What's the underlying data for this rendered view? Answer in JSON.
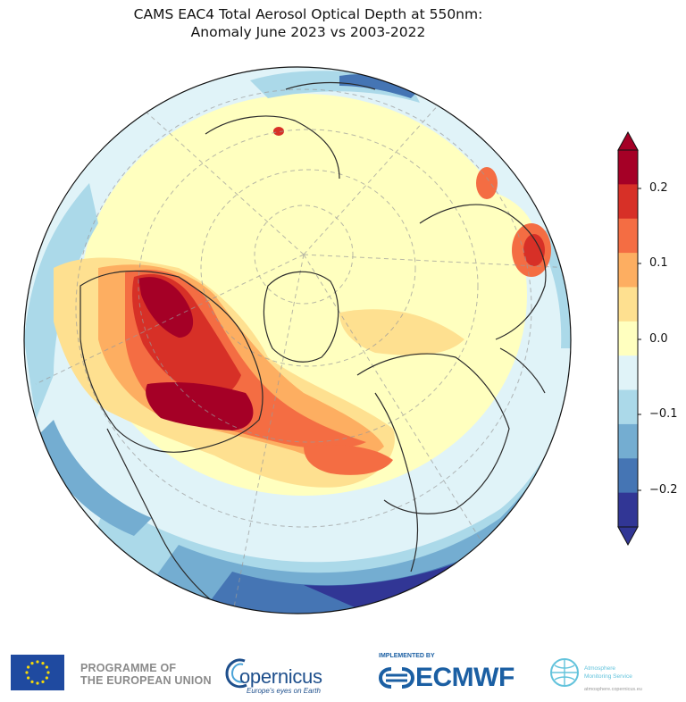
{
  "title": {
    "line1": "CAMS EAC4 Total Aerosol Optical Depth at 550nm:",
    "line2": "Anomaly June 2023 vs 2003-2022"
  },
  "map": {
    "projection": "north polar orthographic",
    "colormap": [
      "#313695",
      "#4575b4",
      "#74add1",
      "#abd9e9",
      "#e0f3f8",
      "#ffffbf",
      "#fee090",
      "#fdae61",
      "#f46d43",
      "#d73027",
      "#a50026"
    ]
  },
  "colorbar": {
    "ticks": [
      "0.2",
      "0.1",
      "0.0",
      "−0.1",
      "−0.2"
    ],
    "range": [
      -0.25,
      0.25
    ],
    "extend": "both"
  },
  "footer": {
    "eu_line1": "PROGRAMME OF",
    "eu_line2": "THE EUROPEAN UNION",
    "copernicus": "opernicus",
    "copernicus_tagline": "Europe's eyes on Earth",
    "implemented_by": "IMPLEMENTED BY",
    "ecmwf": "ECMWF",
    "cams_line1": "Atmosphere",
    "cams_line2": "Monitoring Service",
    "cams_url": "atmosphere.copernicus.eu"
  }
}
